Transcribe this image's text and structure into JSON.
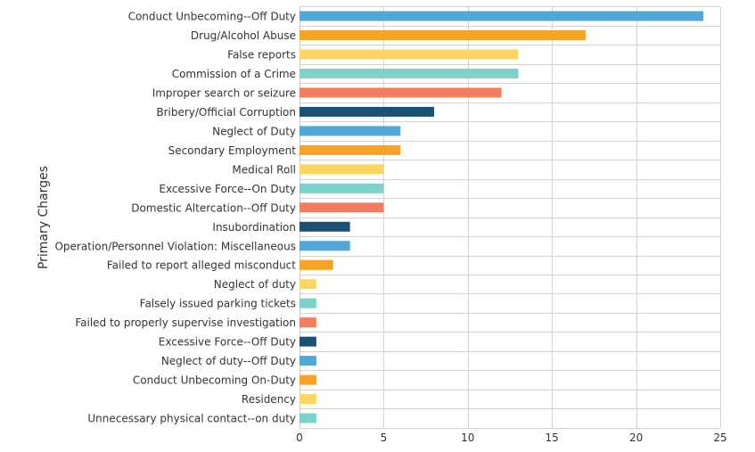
{
  "chart_data": {
    "type": "bar",
    "orientation": "horizontal",
    "title": "",
    "xlabel": "",
    "ylabel": "Primary Charges",
    "xlim": [
      0,
      25
    ],
    "xticks": [
      "0",
      "5",
      "10",
      "15",
      "20",
      "25"
    ],
    "grid": true,
    "legend": "none",
    "palette": [
      "#4fa8d8",
      "#f7a325",
      "#fcd661",
      "#7dd3cc",
      "#f47c5f",
      "#1b5273"
    ],
    "categories": [
      "Conduct Unbecoming--Off Duty",
      "Drug/Alcohol Abuse",
      "False reports",
      "Commission of a Crime",
      "Improper search or seizure",
      "Bribery/Official Corruption",
      "Neglect of Duty",
      "Secondary Employment",
      "Medical Roll",
      "Excessive Force--On Duty",
      "Domestic Altercation--Off Duty",
      "Insubordination",
      "Operation/Personnel Violation: Miscellaneous",
      "Failed to report alleged misconduct",
      "Neglect of duty",
      "Falsely issued parking tickets",
      "Failed to properly supervise investigation",
      "Excessive Force--Off Duty",
      "Neglect of duty--Off Duty",
      "Conduct Unbecoming On-Duty",
      "Residency",
      "Unnecessary physical contact--on duty"
    ],
    "values": [
      24,
      17,
      13,
      13,
      12,
      8,
      6,
      6,
      5,
      5,
      5,
      3,
      3,
      2,
      1,
      1,
      1,
      1,
      1,
      1,
      1,
      1
    ]
  }
}
